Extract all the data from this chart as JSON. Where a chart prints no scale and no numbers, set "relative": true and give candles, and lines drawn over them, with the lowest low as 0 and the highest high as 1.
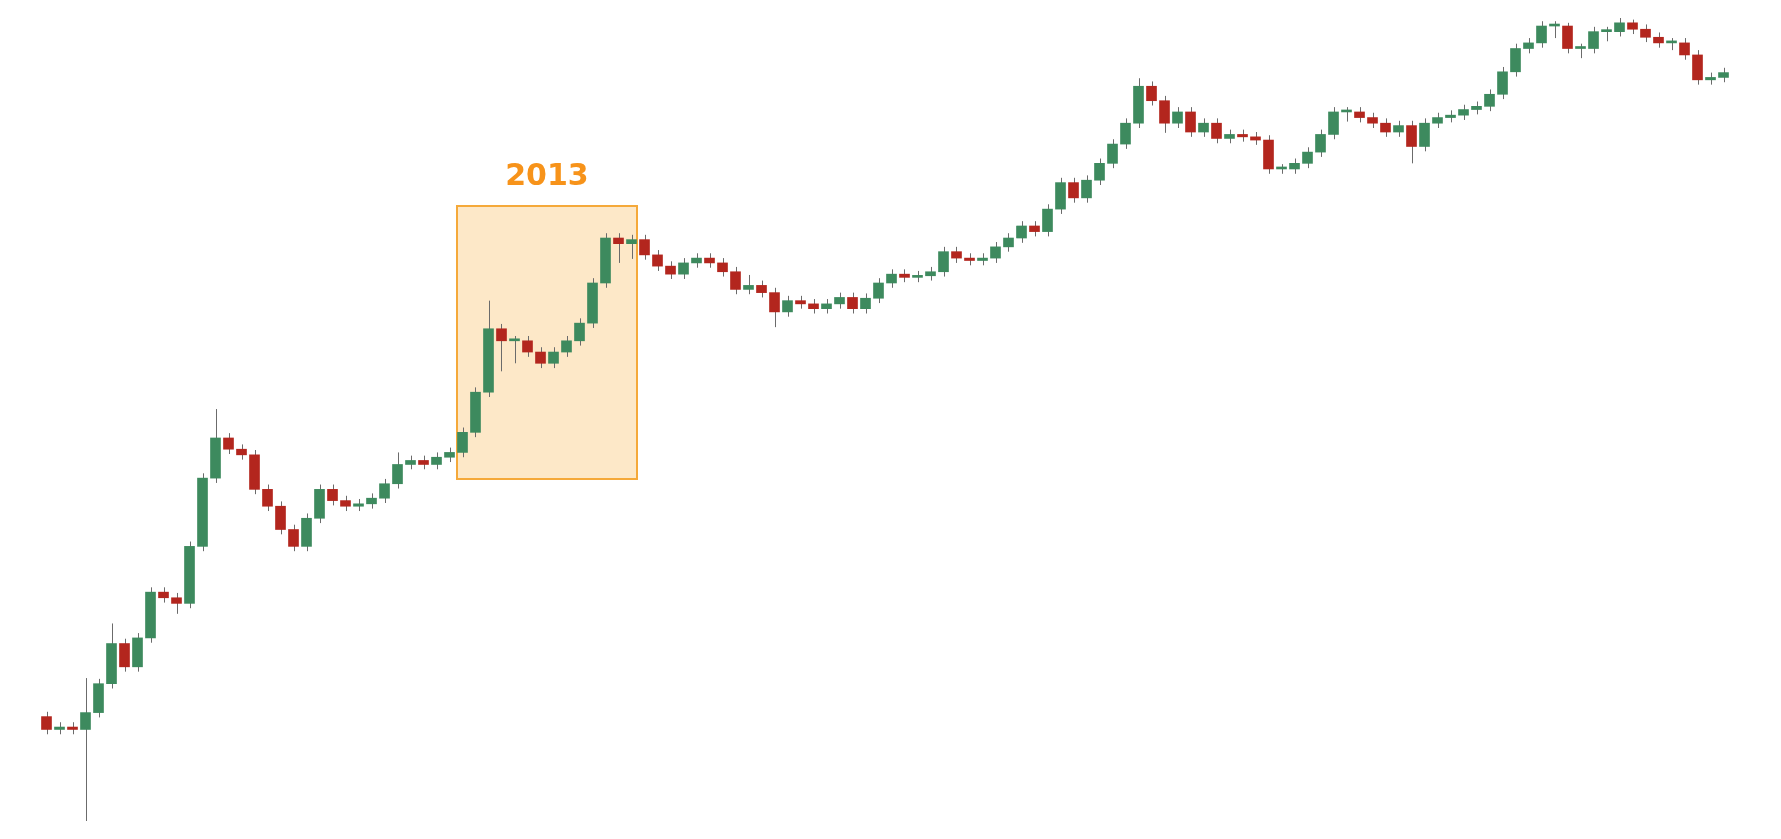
{
  "chart_data": {
    "type": "candlestick",
    "relative": true,
    "categories": [
      null,
      null,
      null,
      null,
      null,
      null,
      null,
      null,
      null,
      null,
      null,
      null,
      null,
      null,
      null,
      null,
      null,
      null,
      null,
      null,
      null,
      null,
      null,
      null,
      null,
      null,
      null,
      null,
      null,
      null,
      null,
      null,
      null,
      null,
      null,
      null,
      null,
      null,
      null,
      null,
      null,
      null,
      null,
      null,
      null,
      null,
      null,
      null,
      null,
      null,
      null,
      null,
      null,
      null,
      null,
      null,
      null,
      null,
      null,
      null,
      null,
      null,
      null,
      null,
      null,
      null,
      null,
      null,
      null,
      null,
      null,
      null,
      null,
      null,
      null,
      null,
      null,
      null,
      null,
      null,
      null,
      null,
      null,
      null,
      null,
      null,
      null,
      null,
      null,
      null,
      null,
      null,
      null,
      null,
      null,
      null,
      null,
      null,
      null,
      null,
      null,
      null,
      null,
      null,
      null,
      null,
      null,
      null,
      null,
      null,
      null,
      null,
      null,
      null,
      null,
      null,
      null,
      null,
      null,
      null,
      null,
      null,
      null,
      null,
      null,
      null,
      null,
      null,
      null,
      null
    ],
    "ohlc": [
      [
        0.13,
        0.136,
        0.108,
        0.114
      ],
      [
        0.114,
        0.123,
        0.108,
        0.117
      ],
      [
        0.117,
        0.123,
        0.108,
        0.114
      ],
      [
        0.114,
        0.178,
        0,
        0.135
      ],
      [
        0.135,
        0.177,
        0.129,
        0.171
      ],
      [
        0.171,
        0.246,
        0.165,
        0.221
      ],
      [
        0.221,
        0.227,
        0.186,
        0.192
      ],
      [
        0.192,
        0.234,
        0.186,
        0.228
      ],
      [
        0.228,
        0.291,
        0.222,
        0.285
      ],
      [
        0.285,
        0.291,
        0.272,
        0.278
      ],
      [
        0.278,
        0.284,
        0.258,
        0.271
      ],
      [
        0.271,
        0.348,
        0.265,
        0.342
      ],
      [
        0.342,
        0.433,
        0.336,
        0.427
      ],
      [
        0.427,
        0.513,
        0.421,
        0.477
      ],
      [
        0.477,
        0.483,
        0.457,
        0.463
      ],
      [
        0.463,
        0.469,
        0.45,
        0.456
      ],
      [
        0.456,
        0.462,
        0.407,
        0.413
      ],
      [
        0.413,
        0.419,
        0.386,
        0.392
      ],
      [
        0.392,
        0.398,
        0.357,
        0.363
      ],
      [
        0.363,
        0.369,
        0.336,
        0.342
      ],
      [
        0.342,
        0.383,
        0.336,
        0.377
      ],
      [
        0.377,
        0.419,
        0.371,
        0.413
      ],
      [
        0.413,
        0.419,
        0.393,
        0.399
      ],
      [
        0.399,
        0.405,
        0.386,
        0.392
      ],
      [
        0.392,
        0.401,
        0.386,
        0.395
      ],
      [
        0.395,
        0.408,
        0.389,
        0.402
      ],
      [
        0.402,
        0.426,
        0.396,
        0.42
      ],
      [
        0.42,
        0.459,
        0.414,
        0.444
      ],
      [
        0.444,
        0.455,
        0.438,
        0.449
      ],
      [
        0.449,
        0.455,
        0.438,
        0.444
      ],
      [
        0.444,
        0.459,
        0.438,
        0.453
      ],
      [
        0.453,
        0.465,
        0.447,
        0.459
      ],
      [
        0.459,
        0.49,
        0.453,
        0.484
      ],
      [
        0.484,
        0.54,
        0.478,
        0.534
      ],
      [
        0.534,
        0.648,
        0.528,
        0.613
      ],
      [
        0.613,
        0.619,
        0.56,
        0.598
      ],
      [
        0.598,
        0.604,
        0.57,
        0.598
      ],
      [
        0.598,
        0.604,
        0.578,
        0.584
      ],
      [
        0.584,
        0.59,
        0.564,
        0.57
      ],
      [
        0.57,
        0.59,
        0.564,
        0.584
      ],
      [
        0.584,
        0.604,
        0.578,
        0.598
      ],
      [
        0.598,
        0.626,
        0.592,
        0.62
      ],
      [
        0.62,
        0.676,
        0.614,
        0.67
      ],
      [
        0.67,
        0.732,
        0.664,
        0.726
      ],
      [
        0.726,
        0.732,
        0.695,
        0.719
      ],
      [
        0.719,
        0.73,
        0.7,
        0.724
      ],
      [
        0.724,
        0.73,
        0.699,
        0.705
      ],
      [
        0.705,
        0.711,
        0.685,
        0.691
      ],
      [
        0.691,
        0.697,
        0.675,
        0.681
      ],
      [
        0.681,
        0.701,
        0.675,
        0.695
      ],
      [
        0.695,
        0.707,
        0.689,
        0.701
      ],
      [
        0.701,
        0.707,
        0.689,
        0.695
      ],
      [
        0.695,
        0.701,
        0.678,
        0.684
      ],
      [
        0.684,
        0.69,
        0.656,
        0.662
      ],
      [
        0.662,
        0.68,
        0.656,
        0.667
      ],
      [
        0.667,
        0.673,
        0.652,
        0.658
      ],
      [
        0.658,
        0.664,
        0.615,
        0.634
      ],
      [
        0.634,
        0.654,
        0.628,
        0.648
      ],
      [
        0.648,
        0.654,
        0.638,
        0.644
      ],
      [
        0.644,
        0.65,
        0.632,
        0.638
      ],
      [
        0.638,
        0.65,
        0.632,
        0.644
      ],
      [
        0.644,
        0.658,
        0.638,
        0.652
      ],
      [
        0.652,
        0.658,
        0.632,
        0.638
      ],
      [
        0.638,
        0.657,
        0.632,
        0.651
      ],
      [
        0.651,
        0.676,
        0.645,
        0.67
      ],
      [
        0.67,
        0.687,
        0.664,
        0.681
      ],
      [
        0.681,
        0.687,
        0.671,
        0.677
      ],
      [
        0.677,
        0.685,
        0.671,
        0.679
      ],
      [
        0.679,
        0.69,
        0.673,
        0.684
      ],
      [
        0.684,
        0.715,
        0.678,
        0.709
      ],
      [
        0.709,
        0.715,
        0.695,
        0.701
      ],
      [
        0.701,
        0.707,
        0.692,
        0.698
      ],
      [
        0.698,
        0.707,
        0.692,
        0.701
      ],
      [
        0.701,
        0.721,
        0.695,
        0.715
      ],
      [
        0.715,
        0.732,
        0.709,
        0.726
      ],
      [
        0.726,
        0.747,
        0.72,
        0.741
      ],
      [
        0.741,
        0.747,
        0.728,
        0.734
      ],
      [
        0.734,
        0.768,
        0.728,
        0.762
      ],
      [
        0.762,
        0.801,
        0.756,
        0.795
      ],
      [
        0.795,
        0.801,
        0.77,
        0.776
      ],
      [
        0.776,
        0.804,
        0.77,
        0.798
      ],
      [
        0.798,
        0.825,
        0.792,
        0.819
      ],
      [
        0.819,
        0.849,
        0.813,
        0.843
      ],
      [
        0.843,
        0.875,
        0.837,
        0.869
      ],
      [
        0.869,
        0.925,
        0.863,
        0.915
      ],
      [
        0.915,
        0.921,
        0.891,
        0.897
      ],
      [
        0.897,
        0.903,
        0.857,
        0.869
      ],
      [
        0.869,
        0.889,
        0.863,
        0.883
      ],
      [
        0.883,
        0.889,
        0.852,
        0.858
      ],
      [
        0.858,
        0.875,
        0.852,
        0.869
      ],
      [
        0.869,
        0.875,
        0.844,
        0.85
      ],
      [
        0.85,
        0.861,
        0.844,
        0.855
      ],
      [
        0.855,
        0.861,
        0.846,
        0.852
      ],
      [
        0.852,
        0.858,
        0.842,
        0.848
      ],
      [
        0.848,
        0.854,
        0.806,
        0.812
      ],
      [
        0.812,
        0.818,
        0.806,
        0.812
      ],
      [
        0.812,
        0.825,
        0.806,
        0.819
      ],
      [
        0.819,
        0.839,
        0.813,
        0.833
      ],
      [
        0.833,
        0.861,
        0.827,
        0.855
      ],
      [
        0.855,
        0.889,
        0.849,
        0.883
      ],
      [
        0.883,
        0.889,
        0.871,
        0.883
      ],
      [
        0.883,
        0.889,
        0.87,
        0.876
      ],
      [
        0.876,
        0.882,
        0.863,
        0.869
      ],
      [
        0.869,
        0.875,
        0.852,
        0.858
      ],
      [
        0.858,
        0.872,
        0.852,
        0.866
      ],
      [
        0.866,
        0.872,
        0.819,
        0.84
      ],
      [
        0.84,
        0.875,
        0.834,
        0.869
      ],
      [
        0.869,
        0.882,
        0.863,
        0.876
      ],
      [
        0.876,
        0.885,
        0.87,
        0.879
      ],
      [
        0.879,
        0.892,
        0.873,
        0.886
      ],
      [
        0.886,
        0.896,
        0.88,
        0.89
      ],
      [
        0.89,
        0.911,
        0.884,
        0.905
      ],
      [
        0.905,
        0.939,
        0.899,
        0.933
      ],
      [
        0.933,
        0.968,
        0.927,
        0.962
      ],
      [
        0.962,
        0.975,
        0.956,
        0.969
      ],
      [
        0.969,
        0.996,
        0.963,
        0.99
      ],
      [
        0.99,
        0.996,
        0.975,
        0.99
      ],
      [
        0.99,
        0.994,
        0.956,
        0.962
      ],
      [
        0.962,
        0.968,
        0.95,
        0.962
      ],
      [
        0.962,
        0.989,
        0.956,
        0.983
      ],
      [
        0.983,
        0.989,
        0.971,
        0.983
      ],
      [
        0.983,
        1,
        0.977,
        0.994
      ],
      [
        0.994,
        0.998,
        0.98,
        0.986
      ],
      [
        0.986,
        0.992,
        0.97,
        0.976
      ],
      [
        0.976,
        0.982,
        0.963,
        0.969
      ],
      [
        0.969,
        0.975,
        0.96,
        0.969
      ],
      [
        0.969,
        0.975,
        0.948,
        0.954
      ],
      [
        0.954,
        0.96,
        0.917,
        0.923
      ],
      [
        0.923,
        0.932,
        0.917,
        0.926
      ],
      [
        0.926,
        0.938,
        0.92,
        0.932
      ]
    ],
    "annotations": [
      "2013"
    ]
  }
}
